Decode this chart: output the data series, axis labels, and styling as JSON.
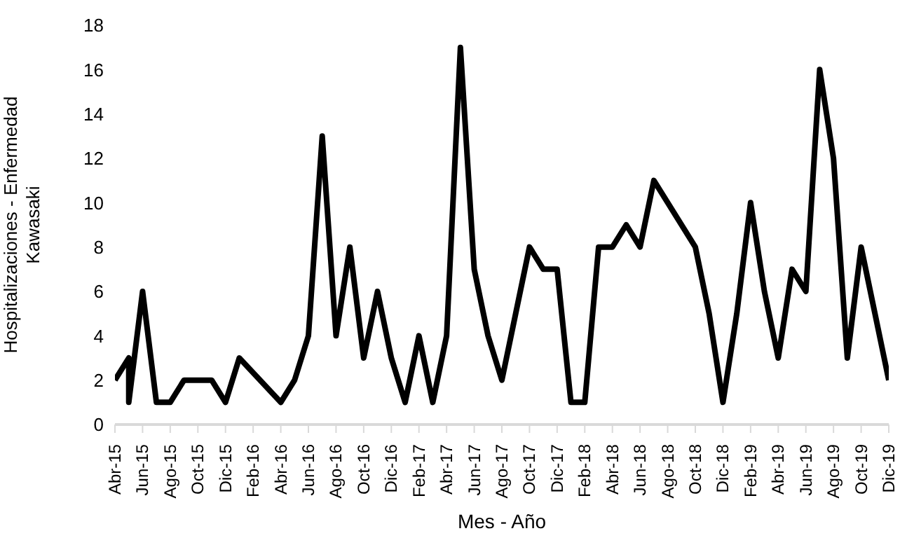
{
  "chart_data": {
    "type": "line",
    "xlabel": "Mes - Año",
    "ylabel": "Hospitalizaciones - Enfermedad Kawasaki",
    "x": [
      "2015-04",
      "2015-05",
      "2015-05",
      "2015-06",
      "2015-07",
      "2015-08",
      "2015-09",
      "2015-10",
      "2015-11",
      "2015-12",
      "2016-01",
      "2016-04",
      "2016-05",
      "2016-06",
      "2016-07",
      "2016-08",
      "2016-09",
      "2016-10",
      "2016-11",
      "2016-12",
      "2017-01",
      "2017-02",
      "2017-03",
      "2017-04",
      "2017-05",
      "2017-06",
      "2017-07",
      "2017-08",
      "2017-09",
      "2017-10",
      "2017-11",
      "2017-12",
      "2018-01",
      "2018-02",
      "2018-03",
      "2018-04",
      "2018-05",
      "2018-06",
      "2018-07",
      "2018-10",
      "2018-11",
      "2018-12",
      "2019-01",
      "2019-02",
      "2019-03",
      "2019-04",
      "2019-05",
      "2019-06",
      "2019-07",
      "2019-08",
      "2019-09",
      "2019-10",
      "2019-11",
      "2019-12"
    ],
    "series": [
      {
        "color": "#000000",
        "values": [
          2,
          3,
          1,
          6,
          1,
          1,
          2,
          2,
          2,
          1,
          3,
          1,
          2,
          4,
          13,
          4,
          8,
          3,
          6,
          3,
          1,
          4,
          1,
          4,
          17,
          7,
          4,
          2,
          5,
          8,
          7,
          7,
          1,
          1,
          8,
          8,
          9,
          8,
          11,
          8,
          5,
          1,
          5,
          10,
          6,
          3,
          7,
          6,
          16,
          12,
          3,
          8,
          5,
          2
        ]
      }
    ],
    "xlim": [
      "2015-04",
      "2019-12"
    ],
    "xticks": [
      {
        "value": "2015-04",
        "label": "Abr-15"
      },
      {
        "value": "2015-06",
        "label": "Jun-15"
      },
      {
        "value": "2015-08",
        "label": "Ago-15"
      },
      {
        "value": "2015-10",
        "label": "Oct-15"
      },
      {
        "value": "2015-12",
        "label": "Dic-15"
      },
      {
        "value": "2016-02",
        "label": "Feb-16"
      },
      {
        "value": "2016-04",
        "label": "Abr-16"
      },
      {
        "value": "2016-06",
        "label": "Jun-16"
      },
      {
        "value": "2016-08",
        "label": "Ago-16"
      },
      {
        "value": "2016-10",
        "label": "Oct-16"
      },
      {
        "value": "2016-12",
        "label": "Dic-16"
      },
      {
        "value": "2017-02",
        "label": "Feb-17"
      },
      {
        "value": "2017-04",
        "label": "Abr-17"
      },
      {
        "value": "2017-06",
        "label": "Jun-17"
      },
      {
        "value": "2017-08",
        "label": "Ago-17"
      },
      {
        "value": "2017-10",
        "label": "Oct-17"
      },
      {
        "value": "2017-12",
        "label": "Dic-17"
      },
      {
        "value": "2018-02",
        "label": "Feb-18"
      },
      {
        "value": "2018-04",
        "label": "Abr-18"
      },
      {
        "value": "2018-06",
        "label": "Jun-18"
      },
      {
        "value": "2018-08",
        "label": "Ago-18"
      },
      {
        "value": "2018-10",
        "label": "Oct-18"
      },
      {
        "value": "2018-12",
        "label": "Dic-18"
      },
      {
        "value": "2019-02",
        "label": "Feb-19"
      },
      {
        "value": "2019-04",
        "label": "Abr-19"
      },
      {
        "value": "2019-06",
        "label": "Jun-19"
      },
      {
        "value": "2019-08",
        "label": "Ago-19"
      },
      {
        "value": "2019-10",
        "label": "Oct-19"
      },
      {
        "value": "2019-12",
        "label": "Dic-19"
      }
    ],
    "ylim": [
      0,
      18
    ],
    "yticks": [
      0,
      2,
      4,
      6,
      8,
      10,
      12,
      14,
      16,
      18
    ],
    "grid": false,
    "legend": false,
    "marker": "none",
    "line_style": "solid"
  }
}
